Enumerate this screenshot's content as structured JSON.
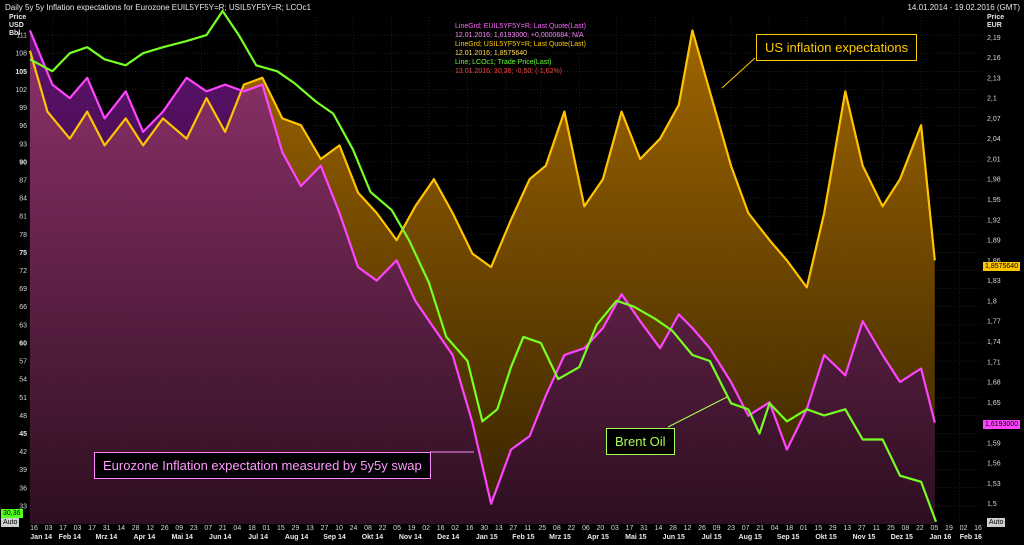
{
  "header": {
    "title": "Daily 5y 5y Inflation expectations for Eurozone EUIL5YF5Y=R; USIL5YF5Y=R; LCOc1",
    "date_range": "14.01.2014 - 19.02.2016 (GMT)"
  },
  "legend": [
    {
      "line1": "LineGrd; EUIL5YF5Y=R; Last Quote(Last)",
      "line2": "12.01.2016; 1,6193000; +0,0000684; N/A",
      "color1": "#ff66ff",
      "color2": "#ff88ff"
    },
    {
      "line1": "LineGrd; USIL5YF5Y=R; Last Quote(Last)",
      "line2": "12.01.2016; 1,8575640",
      "color1": "#ffcc00",
      "color2": "#ffdd55"
    },
    {
      "line1": "Line; LCOc1; Trade Price(Last)",
      "line2": "13.01.2016; 30,36; -0,50; (-1,62%)",
      "color1": "#66ff33",
      "color2": "#88ff55"
    }
  ],
  "axes": {
    "left_title": [
      "Price",
      "USD",
      "Bbl"
    ],
    "right_title": [
      "Price",
      "EUR"
    ]
  },
  "annotations": {
    "us": "US inflation expectations",
    "brent": "Brent Oil",
    "euro": "Eurozone Inflation expectation measured by 5y5y swap"
  },
  "tags": {
    "us_last": "1,8575640",
    "eu_last": "1,6193000",
    "oil_last": "30,36"
  },
  "auto_labels": {
    "left": "Auto",
    "right": "Auto"
  },
  "colors": {
    "us": "#ffc400",
    "eu": "#ff44ff",
    "oil": "#77ff22",
    "grid": "#303030"
  },
  "chart_data": {
    "type": "line",
    "x_axis": {
      "day_ticks": [
        "16",
        "03",
        "17",
        "03",
        "17",
        "31",
        "14",
        "28",
        "12",
        "26",
        "09",
        "23",
        "07",
        "21",
        "04",
        "18",
        "01",
        "15",
        "29",
        "13",
        "27",
        "10",
        "24",
        "08",
        "22",
        "05",
        "19",
        "02",
        "16",
        "02",
        "16",
        "30",
        "13",
        "27",
        "11",
        "25",
        "08",
        "22",
        "06",
        "20",
        "03",
        "17",
        "31",
        "14",
        "28",
        "12",
        "26",
        "09",
        "23",
        "07",
        "21",
        "04",
        "18",
        "01",
        "15",
        "29",
        "13",
        "27",
        "11",
        "25",
        "08",
        "22",
        "05",
        "19",
        "02",
        "16"
      ],
      "month_ticks": [
        "Jan 14",
        "Feb 14",
        "Mrz 14",
        "Apr 14",
        "Mai 14",
        "Jun 14",
        "Jul 14",
        "Aug 14",
        "Sep 14",
        "Okt 14",
        "Nov 14",
        "Dez 14",
        "Jan 15",
        "Feb 15",
        "Mrz 15",
        "Apr 15",
        "Mai 15",
        "Jun 15",
        "Jul 15",
        "Aug 15",
        "Sep 15",
        "Okt 15",
        "Nov 15",
        "Dez 15",
        "Jan 16",
        "Feb 16"
      ],
      "months": [
        "Jan 14",
        "Feb 14",
        "Mar 14",
        "Apr 14",
        "May 14",
        "Jun 14",
        "Jul 14",
        "Aug 14",
        "Sep 14",
        "Oct 14",
        "Nov 14",
        "Dec 14",
        "Jan 15",
        "Feb 15",
        "Mar 15",
        "Apr 15",
        "May 15",
        "Jun 15",
        "Jul 15",
        "Aug 15",
        "Sep 15",
        "Oct 15",
        "Nov 15",
        "Dec 15",
        "Jan 16",
        "Feb 16"
      ],
      "start": "2014-01-14",
      "end": "2016-02-19"
    },
    "left_axis": {
      "label": "Price USD Bbl",
      "ticks": [
        33,
        36,
        39,
        42,
        45,
        48,
        51,
        54,
        57,
        60,
        63,
        66,
        69,
        72,
        75,
        78,
        81,
        84,
        87,
        90,
        93,
        96,
        99,
        102,
        105,
        108,
        111
      ],
      "ylim": [
        30,
        114
      ]
    },
    "right_axis": {
      "label": "Price EUR",
      "ticks": [
        1.5,
        1.53,
        1.56,
        1.59,
        1.62,
        1.65,
        1.68,
        1.71,
        1.74,
        1.77,
        1.8,
        1.83,
        1.86,
        1.89,
        1.92,
        1.95,
        1.98,
        2.01,
        2.04,
        2.07,
        2.1,
        2.13,
        2.16,
        2.19
      ],
      "tick_labels": [
        "1,5",
        "1,53",
        "1,56",
        "1,59",
        "1,62",
        "1,65",
        "1,68",
        "1,71",
        "1,74",
        "1,77",
        "1,8",
        "1,83",
        "1,86",
        "1,89",
        "1,92",
        "1,95",
        "1,98",
        "2,01",
        "2,04",
        "2,07",
        "2,1",
        "2,13",
        "2,16",
        "2,19"
      ],
      "ylim": [
        1.47,
        2.22
      ]
    },
    "series": [
      {
        "name": "USIL5YF5Y=R",
        "axis": "right",
        "color": "#ffc400",
        "points": [
          [
            "2014-01-14",
            2.17
          ],
          [
            "2014-01-28",
            2.08
          ],
          [
            "2014-02-15",
            2.04
          ],
          [
            "2014-03-01",
            2.08
          ],
          [
            "2014-03-15",
            2.03
          ],
          [
            "2014-04-01",
            2.07
          ],
          [
            "2014-04-15",
            2.03
          ],
          [
            "2014-05-01",
            2.07
          ],
          [
            "2014-05-20",
            2.04
          ],
          [
            "2014-06-05",
            2.1
          ],
          [
            "2014-06-20",
            2.05
          ],
          [
            "2014-07-05",
            2.12
          ],
          [
            "2014-07-20",
            2.13
          ],
          [
            "2014-08-05",
            2.07
          ],
          [
            "2014-08-20",
            2.06
          ],
          [
            "2014-09-05",
            2.01
          ],
          [
            "2014-09-20",
            2.03
          ],
          [
            "2014-10-05",
            1.96
          ],
          [
            "2014-10-20",
            1.93
          ],
          [
            "2014-11-05",
            1.89
          ],
          [
            "2014-11-20",
            1.94
          ],
          [
            "2014-12-05",
            1.98
          ],
          [
            "2014-12-20",
            1.93
          ],
          [
            "2015-01-05",
            1.87
          ],
          [
            "2015-01-20",
            1.85
          ],
          [
            "2015-02-05",
            1.92
          ],
          [
            "2015-02-20",
            1.98
          ],
          [
            "2015-03-05",
            2.0
          ],
          [
            "2015-03-20",
            2.08
          ],
          [
            "2015-04-05",
            1.94
          ],
          [
            "2015-04-20",
            1.98
          ],
          [
            "2015-05-05",
            2.08
          ],
          [
            "2015-05-20",
            2.01
          ],
          [
            "2015-06-05",
            2.04
          ],
          [
            "2015-06-20",
            2.09
          ],
          [
            "2015-07-01",
            2.2
          ],
          [
            "2015-07-15",
            2.11
          ],
          [
            "2015-08-01",
            2.0
          ],
          [
            "2015-08-15",
            1.93
          ],
          [
            "2015-09-01",
            1.89
          ],
          [
            "2015-09-15",
            1.86
          ],
          [
            "2015-10-01",
            1.82
          ],
          [
            "2015-10-15",
            1.93
          ],
          [
            "2015-11-01",
            2.11
          ],
          [
            "2015-11-15",
            2.0
          ],
          [
            "2015-12-01",
            1.94
          ],
          [
            "2015-12-15",
            1.98
          ],
          [
            "2016-01-01",
            2.06
          ],
          [
            "2016-01-12",
            1.86
          ]
        ]
      },
      {
        "name": "EUIL5YF5Y=R",
        "axis": "right",
        "color": "#ff44ff",
        "points": [
          [
            "2014-01-14",
            2.2
          ],
          [
            "2014-02-01",
            2.12
          ],
          [
            "2014-02-15",
            2.1
          ],
          [
            "2014-03-01",
            2.13
          ],
          [
            "2014-03-15",
            2.07
          ],
          [
            "2014-04-01",
            2.11
          ],
          [
            "2014-04-15",
            2.05
          ],
          [
            "2014-05-01",
            2.08
          ],
          [
            "2014-05-20",
            2.13
          ],
          [
            "2014-06-05",
            2.11
          ],
          [
            "2014-06-20",
            2.12
          ],
          [
            "2014-07-05",
            2.11
          ],
          [
            "2014-07-20",
            2.12
          ],
          [
            "2014-08-05",
            2.02
          ],
          [
            "2014-08-20",
            1.97
          ],
          [
            "2014-09-05",
            2.0
          ],
          [
            "2014-09-20",
            1.93
          ],
          [
            "2014-10-05",
            1.85
          ],
          [
            "2014-10-20",
            1.83
          ],
          [
            "2014-11-05",
            1.86
          ],
          [
            "2014-11-20",
            1.8
          ],
          [
            "2014-12-05",
            1.76
          ],
          [
            "2014-12-20",
            1.72
          ],
          [
            "2015-01-05",
            1.62
          ],
          [
            "2015-01-20",
            1.5
          ],
          [
            "2015-02-05",
            1.58
          ],
          [
            "2015-02-20",
            1.6
          ],
          [
            "2015-03-05",
            1.66
          ],
          [
            "2015-03-20",
            1.72
          ],
          [
            "2015-04-05",
            1.73
          ],
          [
            "2015-04-20",
            1.76
          ],
          [
            "2015-05-05",
            1.81
          ],
          [
            "2015-05-20",
            1.77
          ],
          [
            "2015-06-05",
            1.73
          ],
          [
            "2015-06-20",
            1.78
          ],
          [
            "2015-07-01",
            1.76
          ],
          [
            "2015-07-15",
            1.73
          ],
          [
            "2015-08-01",
            1.68
          ],
          [
            "2015-08-15",
            1.63
          ],
          [
            "2015-09-01",
            1.65
          ],
          [
            "2015-09-15",
            1.58
          ],
          [
            "2015-10-01",
            1.64
          ],
          [
            "2015-10-15",
            1.72
          ],
          [
            "2015-11-01",
            1.69
          ],
          [
            "2015-11-15",
            1.77
          ],
          [
            "2015-12-01",
            1.72
          ],
          [
            "2015-12-15",
            1.68
          ],
          [
            "2016-01-01",
            1.7
          ],
          [
            "2016-01-12",
            1.62
          ]
        ]
      },
      {
        "name": "LCOc1",
        "axis": "left",
        "color": "#77ff22",
        "points": [
          [
            "2014-01-14",
            107
          ],
          [
            "2014-02-01",
            105
          ],
          [
            "2014-02-15",
            108
          ],
          [
            "2014-03-01",
            109
          ],
          [
            "2014-03-15",
            107
          ],
          [
            "2014-04-01",
            106
          ],
          [
            "2014-04-15",
            108
          ],
          [
            "2014-05-01",
            109
          ],
          [
            "2014-05-20",
            110
          ],
          [
            "2014-06-05",
            111
          ],
          [
            "2014-06-18",
            115
          ],
          [
            "2014-07-01",
            111
          ],
          [
            "2014-07-15",
            106
          ],
          [
            "2014-08-01",
            105
          ],
          [
            "2014-08-15",
            103
          ],
          [
            "2014-09-01",
            100
          ],
          [
            "2014-09-15",
            98
          ],
          [
            "2014-10-01",
            92
          ],
          [
            "2014-10-15",
            85
          ],
          [
            "2014-11-01",
            82
          ],
          [
            "2014-11-15",
            77
          ],
          [
            "2014-12-01",
            70
          ],
          [
            "2014-12-15",
            61
          ],
          [
            "2015-01-01",
            57
          ],
          [
            "2015-01-13",
            47
          ],
          [
            "2015-01-25",
            49
          ],
          [
            "2015-02-05",
            56
          ],
          [
            "2015-02-15",
            61
          ],
          [
            "2015-03-01",
            60
          ],
          [
            "2015-03-15",
            54
          ],
          [
            "2015-04-01",
            56
          ],
          [
            "2015-04-15",
            63
          ],
          [
            "2015-05-01",
            67
          ],
          [
            "2015-05-15",
            66
          ],
          [
            "2015-06-01",
            64
          ],
          [
            "2015-06-15",
            62
          ],
          [
            "2015-07-01",
            58
          ],
          [
            "2015-07-15",
            57
          ],
          [
            "2015-08-01",
            50
          ],
          [
            "2015-08-15",
            49
          ],
          [
            "2015-08-24",
            45
          ],
          [
            "2015-09-01",
            50
          ],
          [
            "2015-09-15",
            47
          ],
          [
            "2015-10-01",
            49
          ],
          [
            "2015-10-15",
            48
          ],
          [
            "2015-11-01",
            49
          ],
          [
            "2015-11-15",
            44
          ],
          [
            "2015-12-01",
            44
          ],
          [
            "2015-12-15",
            38
          ],
          [
            "2016-01-01",
            37
          ],
          [
            "2016-01-13",
            30.36
          ]
        ]
      }
    ]
  }
}
